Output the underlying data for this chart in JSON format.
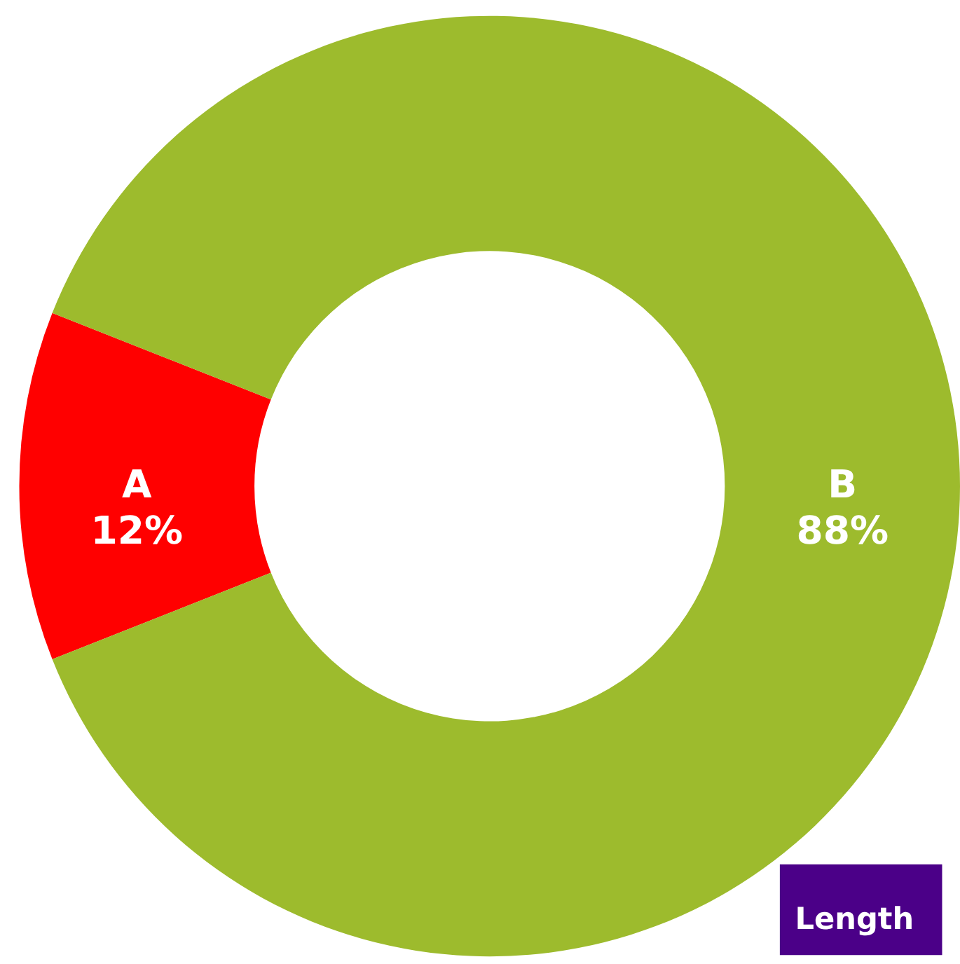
{
  "chart_data": {
    "type": "donut",
    "categories": [
      "A",
      "B"
    ],
    "values": [
      12,
      88
    ],
    "colors": [
      "#ff0000",
      "#9dbb2d"
    ],
    "value_labels": [
      "12%",
      "88%"
    ],
    "legend": false,
    "annotations": [
      "Length"
    ]
  }
}
